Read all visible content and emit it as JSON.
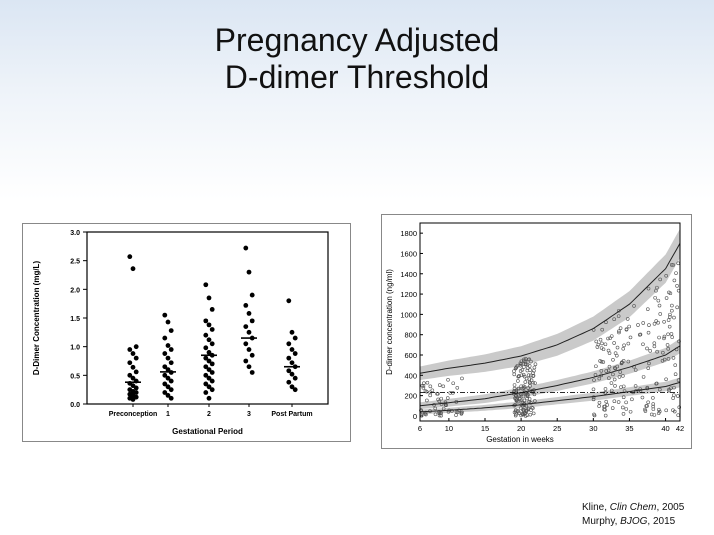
{
  "slide": {
    "title_line1": "Pregnancy Adjusted",
    "title_line2": "D-dimer Threshold"
  },
  "citations": [
    {
      "author": "Kline, ",
      "journal": "Clin Chem",
      "year": ", 2005"
    },
    {
      "author": "Murphy, ",
      "journal": "BJOG",
      "year": ", 2015"
    }
  ],
  "colors": {
    "points": "#000000",
    "band": "#b8b8b8",
    "hollow_points": "#555555"
  },
  "chart_data": [
    {
      "type": "scatter",
      "title": "",
      "xlabel": "Gestational Period",
      "ylabel": "D-Dimer Concentration (mg/L)",
      "categories": [
        "Preconception",
        "1",
        "2",
        "3",
        "Post Partum"
      ],
      "ylim": [
        0,
        3.0
      ],
      "yticks": [
        "0.0",
        "0.5",
        "1.0",
        "1.5",
        "2.0",
        "2.5",
        "3.0"
      ],
      "grid": false,
      "legend": "none",
      "medians": [
        0.38,
        0.56,
        0.85,
        1.15,
        0.65
      ],
      "series": [
        {
          "category": "Preconception",
          "values": [
            2.57,
            2.36,
            1.0,
            0.95,
            0.88,
            0.8,
            0.72,
            0.64,
            0.56,
            0.5,
            0.45,
            0.4,
            0.36,
            0.32,
            0.28,
            0.25,
            0.22,
            0.2,
            0.17,
            0.15,
            0.12,
            0.1,
            0.08
          ]
        },
        {
          "category": "1",
          "values": [
            1.55,
            1.43,
            1.28,
            1.15,
            1.02,
            0.95,
            0.88,
            0.8,
            0.72,
            0.65,
            0.6,
            0.55,
            0.5,
            0.45,
            0.4,
            0.35,
            0.3,
            0.25,
            0.2,
            0.15,
            0.1
          ]
        },
        {
          "category": "2",
          "values": [
            2.08,
            1.85,
            1.65,
            1.45,
            1.38,
            1.3,
            1.2,
            1.12,
            1.05,
            0.98,
            0.9,
            0.85,
            0.8,
            0.75,
            0.7,
            0.65,
            0.6,
            0.55,
            0.5,
            0.45,
            0.4,
            0.35,
            0.3,
            0.25,
            0.2,
            0.1
          ]
        },
        {
          "category": "3",
          "values": [
            2.72,
            2.3,
            1.9,
            1.72,
            1.58,
            1.45,
            1.35,
            1.25,
            1.15,
            1.05,
            0.95,
            0.85,
            0.75,
            0.65,
            0.55
          ]
        },
        {
          "category": "Post Partum",
          "values": [
            1.8,
            1.25,
            1.15,
            1.05,
            0.95,
            0.88,
            0.8,
            0.72,
            0.65,
            0.58,
            0.52,
            0.45,
            0.38,
            0.3,
            0.25
          ]
        }
      ]
    },
    {
      "type": "scatter",
      "title": "",
      "xlabel": "Gestation in weeks",
      "ylabel": "D-dimer concentration (ng/ml)",
      "xlim": [
        6,
        42
      ],
      "ylim": [
        -50,
        1900
      ],
      "xticks": [
        6,
        10,
        15,
        20,
        25,
        30,
        35,
        40,
        42
      ],
      "yticks": [
        0,
        200,
        400,
        600,
        800,
        1000,
        1200,
        1400,
        1600,
        1800
      ],
      "grid": false,
      "legend": "none",
      "reference_line": 230,
      "curves": [
        {
          "name": "",
          "x": [
            6,
            10,
            15,
            20,
            25,
            30,
            35,
            40,
            42
          ],
          "y": [
            420,
            470,
            520,
            590,
            700,
            860,
            1100,
            1450,
            1700
          ]
        },
        {
          "name": "",
          "x": [
            6,
            10,
            15,
            20,
            25,
            30,
            35,
            40,
            42
          ],
          "y": [
            100,
            130,
            170,
            230,
            300,
            380,
            480,
            600,
            690
          ]
        },
        {
          "name": "",
          "x": [
            6,
            10,
            15,
            20,
            25,
            30,
            35,
            40,
            42
          ],
          "y": [
            40,
            55,
            80,
            110,
            150,
            190,
            240,
            290,
            330
          ]
        }
      ],
      "points_description_clusters": [
        {
          "x_range": [
            6,
            12
          ],
          "y_range": [
            0,
            650
          ]
        },
        {
          "x_range": [
            19,
            22
          ],
          "y_range": [
            0,
            1000
          ]
        },
        {
          "x_range": [
            30,
            42
          ],
          "y_range": [
            0,
            1800
          ]
        }
      ]
    }
  ]
}
